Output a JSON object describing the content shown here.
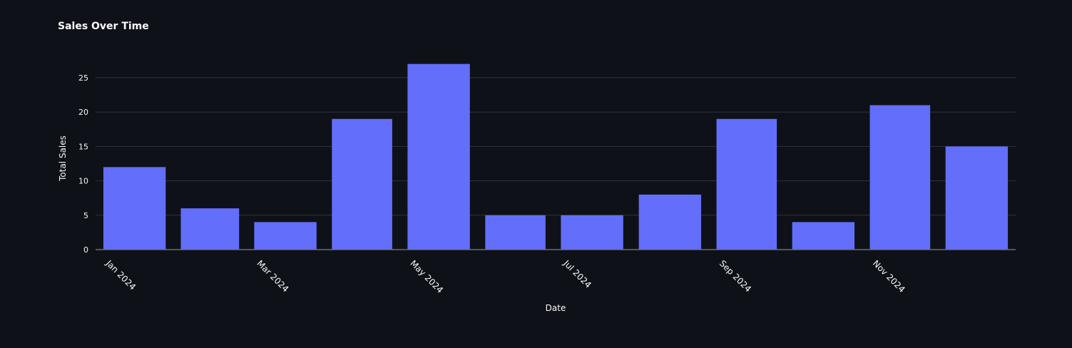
{
  "chart_data": {
    "type": "bar",
    "title": "Sales Over Time",
    "xlabel": "Date",
    "ylabel": "Total Sales",
    "categories": [
      "2024-01",
      "2024-02",
      "2024-03",
      "2024-04",
      "2024-05",
      "2024-06",
      "2024-07",
      "2024-08",
      "2024-09",
      "2024-10",
      "2024-11",
      "2024-12"
    ],
    "values": [
      12,
      6,
      4,
      19,
      27,
      5,
      5,
      8,
      19,
      4,
      21,
      15
    ],
    "x_tick_labels": [
      "Jan 2024",
      "Mar 2024",
      "May 2024",
      "Jul 2024",
      "Sep 2024",
      "Nov 2024"
    ],
    "y_ticks": [
      0,
      5,
      10,
      15,
      20,
      25
    ],
    "ylim": [
      0,
      28
    ],
    "grid": true,
    "bar_color": "#636efa",
    "background_color": "#0e1117"
  }
}
